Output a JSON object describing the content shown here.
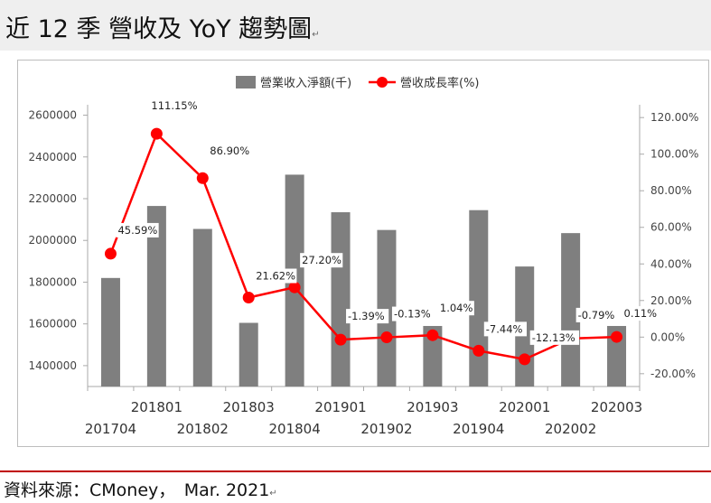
{
  "header": {
    "title": "近 12 季 營收及 YoY 趨勢圖",
    "mark": "↵"
  },
  "footer": {
    "source": "資料來源：CMoney，　Mar. 2021",
    "mark": "↵"
  },
  "colors": {
    "bar": "#7f7f7f",
    "line": "#ff0000",
    "accent_rule": "#c00000"
  },
  "chart_data": {
    "type": "bar",
    "categories": [
      "201704",
      "201801",
      "201802",
      "201803",
      "201804",
      "201901",
      "201902",
      "201903",
      "201904",
      "202001",
      "202002",
      "202003"
    ],
    "series": [
      {
        "name": "營業收入淨額(千)",
        "type": "bar",
        "axis": "left",
        "values": [
          1820000,
          2165000,
          2055000,
          1605000,
          2315000,
          2135000,
          2050000,
          1590000,
          2145000,
          1875000,
          2035000,
          1590000
        ]
      },
      {
        "name": "營收成長率(%)",
        "type": "line",
        "axis": "right",
        "values": [
          45.59,
          111.15,
          86.9,
          21.62,
          27.2,
          -1.39,
          -0.13,
          1.04,
          -7.44,
          -12.13,
          -0.79,
          0.11
        ],
        "labels": [
          "45.59%",
          "111.15%",
          "86.90%",
          "21.62%",
          "27.20%",
          "-1.39%",
          "-0.13%",
          "1.04%",
          "-7.44%",
          "-12.13%",
          "-0.79%",
          "0.11%"
        ]
      }
    ],
    "y_left": {
      "range": [
        1300000,
        2650000
      ],
      "ticks": [
        1400000,
        1600000,
        1800000,
        2000000,
        2200000,
        2400000,
        2600000
      ],
      "tick_labels": [
        "1400000",
        "1600000",
        "1800000",
        "2000000",
        "2200000",
        "2400000",
        "2600000"
      ]
    },
    "y_right": {
      "range": [
        -27,
        127
      ],
      "ticks": [
        -20,
        0,
        20,
        40,
        60,
        80,
        100,
        120
      ],
      "tick_labels": [
        "-20.00%",
        "0.00%",
        "20.00%",
        "40.00%",
        "60.00%",
        "80.00%",
        "100.00%",
        "120.00%"
      ]
    },
    "grid": false,
    "legend": "top-center"
  }
}
